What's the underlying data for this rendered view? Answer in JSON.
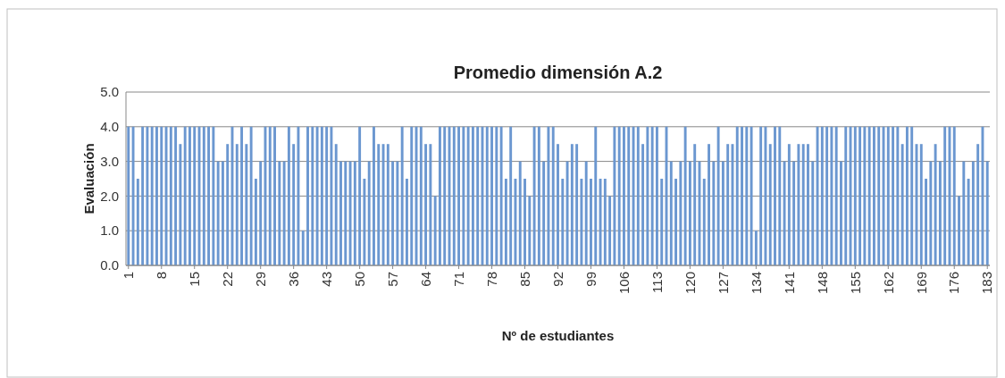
{
  "chart_data": {
    "type": "bar",
    "title": "Promedio dimensión A.2",
    "xlabel": "Nº de estudiantes",
    "ylabel": "Evaluación",
    "categories": [
      "1",
      null,
      null,
      null,
      null,
      null,
      null,
      "8",
      null,
      null,
      null,
      null,
      null,
      null,
      "15",
      null,
      null,
      null,
      null,
      null,
      null,
      "22",
      null,
      null,
      null,
      null,
      null,
      null,
      "29",
      null,
      null,
      null,
      null,
      null,
      null,
      "36",
      null,
      null,
      null,
      null,
      null,
      null,
      "43",
      null,
      null,
      null,
      null,
      null,
      null,
      "50",
      null,
      null,
      null,
      null,
      null,
      null,
      "57",
      null,
      null,
      null,
      null,
      null,
      null,
      "64",
      null,
      null,
      null,
      null,
      null,
      null,
      "71",
      null,
      null,
      null,
      null,
      null,
      null,
      "78",
      null,
      null,
      null,
      null,
      null,
      null,
      "85",
      null,
      null,
      null,
      null,
      null,
      null,
      "92",
      null,
      null,
      null,
      null,
      null,
      null,
      "99",
      null,
      null,
      null,
      null,
      null,
      null,
      "106",
      null,
      null,
      null,
      null,
      null,
      null,
      "113",
      null,
      null,
      null,
      null,
      null,
      null,
      "120",
      null,
      null,
      null,
      null,
      null,
      null,
      "127",
      null,
      null,
      null,
      null,
      null,
      null,
      "134",
      null,
      null,
      null,
      null,
      null,
      null,
      "141",
      null,
      null,
      null,
      null,
      null,
      null,
      "148",
      null,
      null,
      null,
      null,
      null,
      null,
      "155",
      null,
      null,
      null,
      null,
      null,
      null,
      "162",
      null,
      null,
      null,
      null,
      null,
      null,
      "169",
      null,
      null,
      null,
      null,
      null,
      null,
      "176",
      null,
      null,
      null,
      null,
      null,
      null,
      "183"
    ],
    "values": [
      4,
      4,
      2.5,
      4,
      4,
      4,
      4,
      4,
      4,
      4,
      4,
      3.5,
      4,
      4,
      4,
      4,
      4,
      4,
      4,
      3,
      3,
      3.5,
      4,
      3.5,
      4,
      3.5,
      4,
      2.5,
      3,
      4,
      4,
      4,
      3,
      3,
      4,
      3.5,
      4,
      1,
      4,
      4,
      4,
      4,
      4,
      4,
      3.5,
      3,
      3,
      3,
      3,
      4,
      2.5,
      3,
      4,
      3.5,
      3.5,
      3.5,
      3,
      3,
      4,
      2.5,
      4,
      4,
      4,
      3.5,
      3.5,
      2,
      4,
      4,
      4,
      4,
      4,
      4,
      4,
      4,
      4,
      4,
      4,
      4,
      4,
      4,
      2.5,
      4,
      2.5,
      3,
      2.5,
      2,
      4,
      4,
      3,
      4,
      4,
      3.5,
      2.5,
      3,
      3.5,
      3.5,
      2.5,
      3,
      2.5,
      4,
      2.5,
      2.5,
      2,
      4,
      4,
      4,
      4,
      4,
      4,
      3.5,
      4,
      4,
      4,
      2.5,
      4,
      3,
      2.5,
      3,
      4,
      3,
      3.5,
      3,
      2.5,
      3.5,
      3,
      4,
      3,
      3.5,
      3.5,
      4,
      4,
      4,
      4,
      1,
      4,
      4,
      3.5,
      4,
      4,
      3,
      3.5,
      3,
      3.5,
      3.5,
      3.5,
      3,
      4,
      4,
      4,
      4,
      4,
      3,
      4,
      4,
      4,
      4,
      4,
      4,
      4,
      4,
      4,
      4,
      4,
      4,
      3.5,
      4,
      4,
      3.5,
      3.5,
      2.5,
      3,
      3.5,
      3,
      4,
      4,
      4,
      2,
      3,
      2.5,
      3,
      3.5,
      4,
      3
    ],
    "color": "#6b97d0",
    "ylim": [
      0,
      5
    ],
    "yticks": [
      {
        "value": 0,
        "label": "0.0"
      },
      {
        "value": 1,
        "label": "1.0"
      },
      {
        "value": 2,
        "label": "2.0"
      },
      {
        "value": 3,
        "label": "3.0"
      },
      {
        "value": 4,
        "label": "4.0"
      },
      {
        "value": 5,
        "label": "5.0"
      }
    ],
    "grid": "y"
  }
}
